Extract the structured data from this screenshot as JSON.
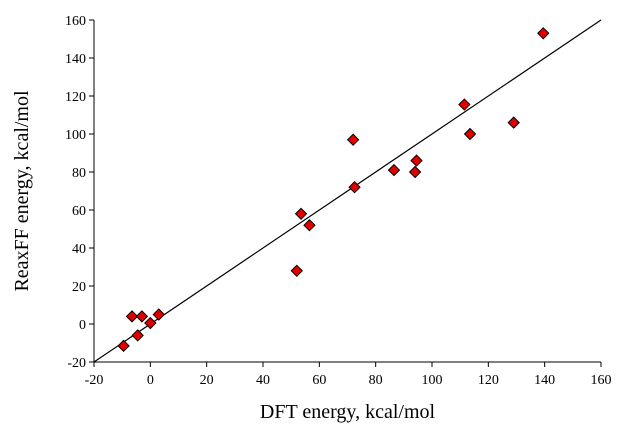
{
  "chart_data": {
    "type": "scatter",
    "xlabel": "DFT energy, kcal/mol",
    "ylabel": "ReaxFF energy, kcal/mol",
    "xlim": [
      -20,
      160
    ],
    "ylim": [
      -20,
      160
    ],
    "x_ticks": [
      -20,
      0,
      20,
      40,
      60,
      80,
      100,
      120,
      140,
      160
    ],
    "y_ticks": [
      -20,
      0,
      20,
      40,
      60,
      80,
      100,
      120,
      140,
      160
    ],
    "grid": false,
    "reference_line": {
      "from": [
        -20,
        -20
      ],
      "to": [
        160,
        160
      ]
    },
    "marker": {
      "shape": "diamond",
      "fill": "#e00000",
      "stroke": "#000000"
    },
    "points": [
      {
        "x": -9.5,
        "y": -11.5
      },
      {
        "x": -6.5,
        "y": 4
      },
      {
        "x": -3,
        "y": 4
      },
      {
        "x": -4.5,
        "y": -6
      },
      {
        "x": 0,
        "y": 0.5
      },
      {
        "x": 3,
        "y": 5
      },
      {
        "x": 52,
        "y": 28
      },
      {
        "x": 53.5,
        "y": 58
      },
      {
        "x": 56.5,
        "y": 52
      },
      {
        "x": 72,
        "y": 97
      },
      {
        "x": 72.5,
        "y": 72
      },
      {
        "x": 86.5,
        "y": 81
      },
      {
        "x": 94,
        "y": 80
      },
      {
        "x": 94.5,
        "y": 86
      },
      {
        "x": 111.5,
        "y": 115.5
      },
      {
        "x": 113.5,
        "y": 100
      },
      {
        "x": 129,
        "y": 106
      },
      {
        "x": 139.5,
        "y": 153
      }
    ]
  }
}
